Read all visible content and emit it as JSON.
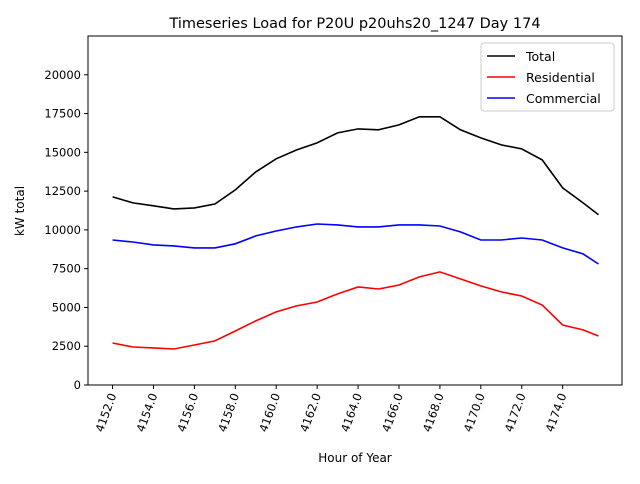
{
  "chart_data": {
    "type": "line",
    "title": "Timeseries Load for P20U p20uhs20_1247  Day 174",
    "xlabel": "Hour of Year",
    "ylabel": "kW total",
    "xlim": [
      4150.8,
      4176.9
    ],
    "ylim": [
      0,
      22500
    ],
    "xticks": [
      4152,
      4154,
      4156,
      4158,
      4160,
      4162,
      4164,
      4166,
      4168,
      4170,
      4172,
      4174
    ],
    "xtick_labels": [
      "4152.0",
      "4154.0",
      "4156.0",
      "4158.0",
      "4160.0",
      "4162.0",
      "4164.0",
      "4166.0",
      "4168.0",
      "4170.0",
      "4172.0",
      "4174.0"
    ],
    "yticks": [
      0,
      2500,
      5000,
      7500,
      10000,
      12500,
      15000,
      17500,
      20000
    ],
    "ytick_labels": [
      "0",
      "2500",
      "5000",
      "7500",
      "10000",
      "12500",
      "15000",
      "17500",
      "20000"
    ],
    "grid": false,
    "legend_position": "top-right",
    "x": [
      4152,
      4153,
      4154,
      4155,
      4156,
      4157,
      4158,
      4159,
      4160,
      4161,
      4162,
      4163,
      4164,
      4165,
      4166,
      4167,
      4168,
      4169,
      4170,
      4171,
      4172,
      4173,
      4174,
      4175,
      4175.75
    ],
    "series": [
      {
        "name": "Total",
        "color": "#000000",
        "values": [
          12130,
          11740,
          11550,
          11350,
          11420,
          11670,
          12580,
          13740,
          14580,
          15160,
          15610,
          16250,
          16510,
          16450,
          16770,
          17290,
          17290,
          16450,
          15930,
          15480,
          15220,
          14510,
          12710,
          11740,
          10970
        ]
      },
      {
        "name": "Residential",
        "color": "#ff0000",
        "values": [
          2710,
          2450,
          2390,
          2320,
          2580,
          2840,
          3480,
          4130,
          4710,
          5100,
          5350,
          5870,
          6320,
          6190,
          6450,
          6970,
          7290,
          6840,
          6390,
          6000,
          5740,
          5160,
          3870,
          3550,
          3160
        ]
      },
      {
        "name": "Commercial",
        "color": "#0000ff",
        "values": [
          9350,
          9220,
          9030,
          8970,
          8840,
          8840,
          9100,
          9610,
          9930,
          10190,
          10380,
          10320,
          10190,
          10190,
          10320,
          10320,
          10250,
          9870,
          9350,
          9350,
          9480,
          9350,
          8840,
          8450,
          7800
        ]
      }
    ]
  }
}
